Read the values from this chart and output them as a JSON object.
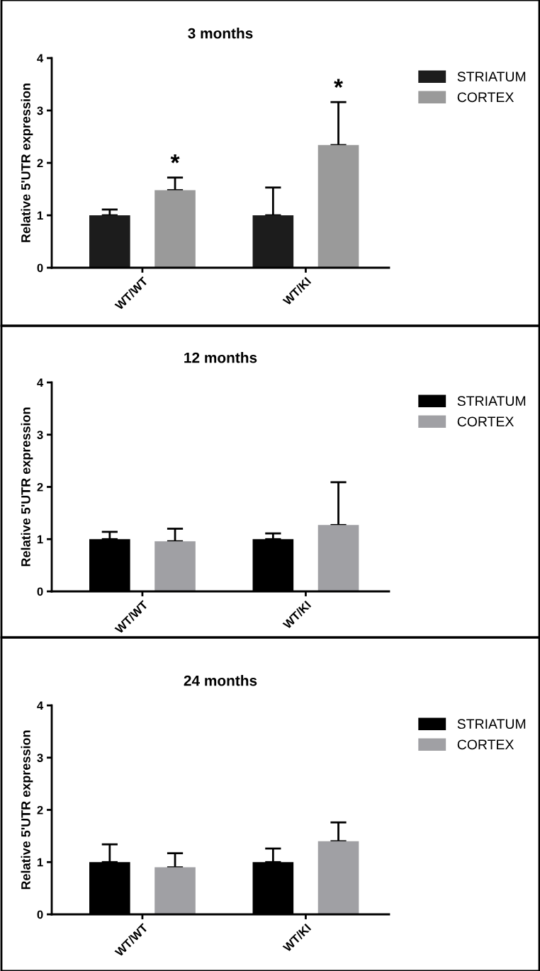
{
  "chart_data": [
    {
      "type": "bar",
      "title": "3 months",
      "ylabel": "Relative 5'UTR expression",
      "categories": [
        "WT/WT",
        "WT/KI"
      ],
      "ylim": [
        0,
        4
      ],
      "yticks": [
        0,
        1,
        2,
        3,
        4
      ],
      "grid": false,
      "legend": "top right",
      "series": [
        {
          "name": "STRIATUM",
          "color": "#1c1c1c",
          "values": [
            1.0,
            1.0
          ],
          "errors": [
            [
              1.0,
              1.11
            ],
            [
              1.0,
              1.53
            ]
          ]
        },
        {
          "name": "CORTEX",
          "color": "#9a9a9a",
          "values": [
            1.48,
            2.34
          ],
          "errors": [
            [
              1.48,
              1.72
            ],
            [
              2.34,
              3.16
            ]
          ]
        }
      ],
      "annotations": [
        "*",
        "*"
      ]
    },
    {
      "type": "bar",
      "title": "12 months",
      "ylabel": "Relative 5'UTR expression",
      "categories": [
        "WT/WT",
        "WT/KI"
      ],
      "ylim": [
        0,
        4
      ],
      "yticks": [
        0,
        1,
        2,
        3,
        4
      ],
      "grid": false,
      "legend": "top right",
      "series": [
        {
          "name": "STRIATUM",
          "color": "#000000",
          "values": [
            1.0,
            1.0
          ],
          "errors": [
            [
              1.0,
              1.14
            ],
            [
              1.0,
              1.11
            ]
          ]
        },
        {
          "name": "CORTEX",
          "color": "#a0a0a4",
          "values": [
            0.96,
            1.27
          ],
          "errors": [
            [
              0.96,
              1.2
            ],
            [
              1.27,
              2.09
            ]
          ]
        }
      ]
    },
    {
      "type": "bar",
      "title": "24 months",
      "ylabel": "Relative 5'UTR expression",
      "categories": [
        "WT/WT",
        "WT/KI"
      ],
      "ylim": [
        0,
        4
      ],
      "yticks": [
        0,
        1,
        2,
        3,
        4
      ],
      "grid": false,
      "legend": "top right",
      "series": [
        {
          "name": "STRIATUM",
          "color": "#000000",
          "values": [
            1.0,
            1.0
          ],
          "errors": [
            [
              1.0,
              1.34
            ],
            [
              1.0,
              1.26
            ]
          ]
        },
        {
          "name": "CORTEX",
          "color": "#a0a0a4",
          "values": [
            0.9,
            1.4
          ],
          "errors": [
            [
              0.9,
              1.17
            ],
            [
              1.4,
              1.76
            ]
          ]
        }
      ]
    }
  ]
}
